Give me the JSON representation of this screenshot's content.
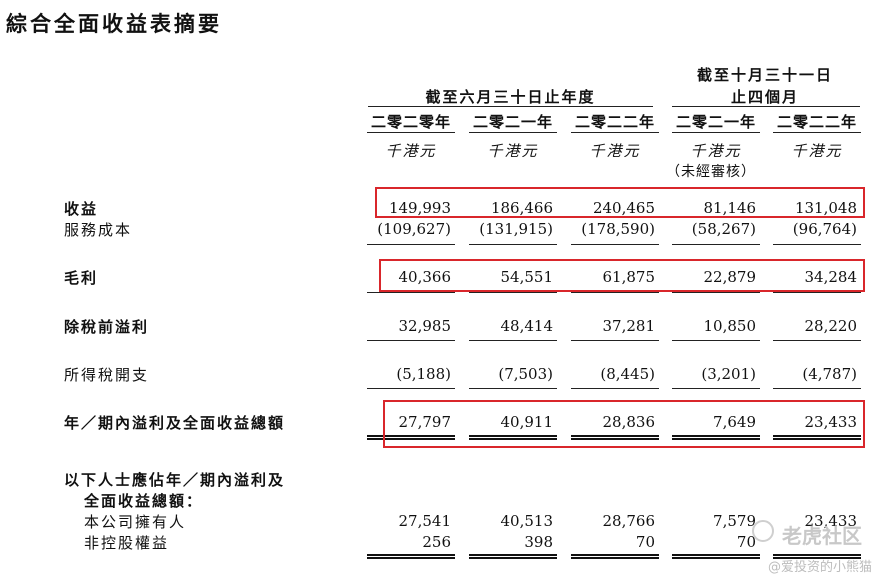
{
  "title": "綜合全面收益表摘要",
  "headers": {
    "group1": "截至六月三十日止年度",
    "group2_line1": "截至十月三十一日",
    "group2_line2": "止四個月"
  },
  "columns": [
    {
      "year": "二零二零年",
      "unit": "千港元",
      "note": ""
    },
    {
      "year": "二零二一年",
      "unit": "千港元",
      "note": ""
    },
    {
      "year": "二零二二年",
      "unit": "千港元",
      "note": ""
    },
    {
      "year": "二零二一年",
      "unit": "千港元",
      "note": "（未經審核）"
    },
    {
      "year": "二零二二年",
      "unit": "千港元",
      "note": ""
    }
  ],
  "rows": [
    {
      "label": "收益",
      "values": [
        "149,993",
        "186,466",
        "240,465",
        "81,146",
        "131,048"
      ]
    },
    {
      "label": "服務成本",
      "values": [
        "(109,627)",
        "(131,915)",
        "(178,590)",
        "(58,267)",
        "(96,764)"
      ]
    },
    {
      "label": "毛利",
      "values": [
        "40,366",
        "54,551",
        "61,875",
        "22,879",
        "34,284"
      ]
    },
    {
      "label": "除稅前溢利",
      "values": [
        "32,985",
        "48,414",
        "37,281",
        "10,850",
        "28,220"
      ]
    },
    {
      "label": "所得稅開支",
      "values": [
        "(5,188)",
        "(7,503)",
        "(8,445)",
        "(3,201)",
        "(4,787)"
      ]
    },
    {
      "label": "年／期內溢利及全面收益總額",
      "values": [
        "27,797",
        "40,911",
        "28,836",
        "7,649",
        "23,433"
      ]
    },
    {
      "label": "以下人士應佔年／期內溢利及",
      "values": []
    },
    {
      "label": "全面收益總額：",
      "values": []
    },
    {
      "label": "本公司擁有人",
      "values": [
        "27,541",
        "40,513",
        "28,766",
        "7,579",
        "23,433"
      ]
    },
    {
      "label": "非控股權益",
      "values": [
        "256",
        "398",
        "70",
        "70",
        ""
      ]
    }
  ],
  "watermark": {
    "brand": "老虎社区",
    "author": "@爱投资的小熊猫"
  },
  "colors": {
    "highlight": "#d9262b",
    "text": "#111111"
  }
}
